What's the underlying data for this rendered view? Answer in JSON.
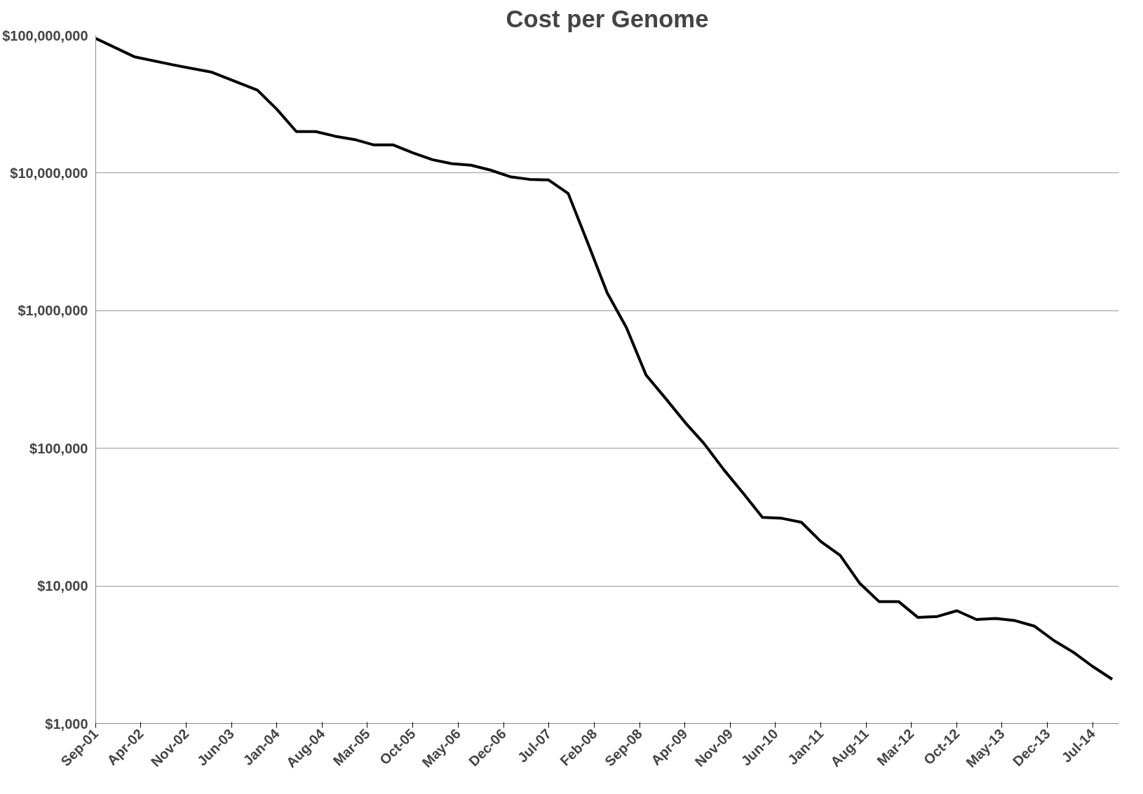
{
  "chart_data": {
    "type": "line",
    "title": "Cost per Genome",
    "x": [
      "2001-09",
      "2002-03",
      "2002-09",
      "2003-03",
      "2003-10",
      "2004-01",
      "2004-04",
      "2004-07",
      "2004-10",
      "2005-01",
      "2005-04",
      "2005-07",
      "2005-10",
      "2006-01",
      "2006-04",
      "2006-07",
      "2006-10",
      "2007-01",
      "2007-04",
      "2007-07",
      "2007-10",
      "2008-01",
      "2008-04",
      "2008-07",
      "2008-10",
      "2009-01",
      "2009-04",
      "2009-07",
      "2009-10",
      "2010-01",
      "2010-04",
      "2010-07",
      "2010-10",
      "2011-01",
      "2011-04",
      "2011-07",
      "2011-10",
      "2012-01",
      "2012-04",
      "2012-07",
      "2012-10",
      "2013-01",
      "2013-04",
      "2013-07",
      "2013-10",
      "2014-01",
      "2014-04",
      "2014-07",
      "2014-10"
    ],
    "series": [
      {
        "color": "#000000",
        "values": [
          95000000,
          70000000,
          61000000,
          54000000,
          40000000,
          29000000,
          20000000,
          20000000,
          18500000,
          17500000,
          16000000,
          16000000,
          14000000,
          12500000,
          11700000,
          11400000,
          10500000,
          9400000,
          9000000,
          8900000,
          7100000,
          3100000,
          1350000,
          750000,
          340000,
          230000,
          155000,
          108000,
          70000,
          47000,
          31500,
          31000,
          29000,
          21000,
          16700,
          10500,
          7700,
          7700,
          5900,
          6000,
          6600,
          5700,
          5800,
          5600,
          5100,
          4000,
          3300,
          2600,
          2100
        ]
      }
    ],
    "xlim": [
      "2001-09",
      "2014-11"
    ],
    "xticks": [
      {
        "value": "2001-09",
        "label": "Sep-01"
      },
      {
        "value": "2002-04",
        "label": "Apr-02"
      },
      {
        "value": "2002-11",
        "label": "Nov-02"
      },
      {
        "value": "2003-06",
        "label": "Jun-03"
      },
      {
        "value": "2004-01",
        "label": "Jan-04"
      },
      {
        "value": "2004-08",
        "label": "Aug-04"
      },
      {
        "value": "2005-03",
        "label": "Mar-05"
      },
      {
        "value": "2005-10",
        "label": "Oct-05"
      },
      {
        "value": "2006-05",
        "label": "May-06"
      },
      {
        "value": "2006-12",
        "label": "Dec-06"
      },
      {
        "value": "2007-07",
        "label": "Jul-07"
      },
      {
        "value": "2008-02",
        "label": "Feb-08"
      },
      {
        "value": "2008-09",
        "label": "Sep-08"
      },
      {
        "value": "2009-04",
        "label": "Apr-09"
      },
      {
        "value": "2009-11",
        "label": "Nov-09"
      },
      {
        "value": "2010-06",
        "label": "Jun-10"
      },
      {
        "value": "2011-01",
        "label": "Jan-11"
      },
      {
        "value": "2011-08",
        "label": "Aug-11"
      },
      {
        "value": "2012-03",
        "label": "Mar-12"
      },
      {
        "value": "2012-10",
        "label": "Oct-12"
      },
      {
        "value": "2013-05",
        "label": "May-13"
      },
      {
        "value": "2013-12",
        "label": "Dec-13"
      },
      {
        "value": "2014-07",
        "label": "Jul-14"
      }
    ],
    "ylim": [
      1000,
      100000000
    ],
    "yticks": [
      {
        "value": 1000,
        "label": "$1,000"
      },
      {
        "value": 10000,
        "label": "$10,000"
      },
      {
        "value": 100000,
        "label": "$100,000"
      },
      {
        "value": 1000000,
        "label": "$1,000,000"
      },
      {
        "value": 10000000,
        "label": "$10,000,000"
      },
      {
        "value": 100000000,
        "label": "$100,000,000"
      }
    ],
    "log": "y",
    "grid": "y",
    "marker": "none",
    "line_style": "solid"
  }
}
